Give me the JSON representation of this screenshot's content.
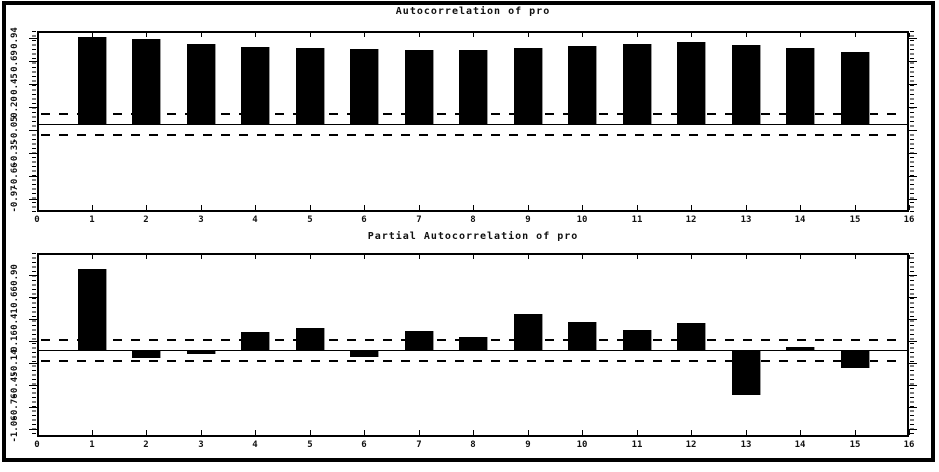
{
  "page": {
    "background": "#ffffff",
    "border_color": "#000000",
    "bar_color": "#000000"
  },
  "chart_data": [
    {
      "type": "bar",
      "title": "Autocorrelation of pro",
      "lags": [
        1,
        2,
        3,
        4,
        5,
        6,
        7,
        8,
        9,
        10,
        11,
        12,
        13,
        14,
        15
      ],
      "values": [
        0.93,
        0.9,
        0.85,
        0.82,
        0.81,
        0.8,
        0.79,
        0.79,
        0.81,
        0.83,
        0.85,
        0.87,
        0.84,
        0.81,
        0.77
      ],
      "xlabel": "",
      "ylabel": "",
      "xlim": [
        0,
        16
      ],
      "x_ticks": [
        "0",
        "1",
        "2",
        "3",
        "4",
        "5",
        "6",
        "7",
        "8",
        "9",
        "10",
        "11",
        "12",
        "13",
        "14",
        "15",
        "16"
      ],
      "y_ticks": [
        "0.94",
        "0.69",
        "0.45",
        "0.20",
        "-0.05",
        "-0.35",
        "-0.66",
        "-0.97"
      ],
      "zero_line": true,
      "confidence_band": 0.11,
      "grid": false,
      "legend": "none",
      "bar_color": "#000000"
    },
    {
      "type": "bar",
      "title": "Partial Autocorrelation of pro",
      "lags": [
        1,
        2,
        3,
        4,
        5,
        6,
        7,
        8,
        9,
        10,
        11,
        12,
        13,
        14,
        15
      ],
      "values": [
        0.9,
        -0.08,
        -0.03,
        0.2,
        0.24,
        -0.07,
        0.21,
        0.14,
        0.4,
        0.31,
        0.22,
        0.3,
        -0.49,
        0.03,
        -0.19
      ],
      "xlabel": "",
      "ylabel": "",
      "xlim": [
        0,
        16
      ],
      "x_ticks": [
        "0",
        "1",
        "2",
        "3",
        "4",
        "5",
        "6",
        "7",
        "8",
        "9",
        "10",
        "11",
        "12",
        "13",
        "14",
        "15",
        "16"
      ],
      "y_ticks": [
        "0.90",
        "0.66",
        "0.41",
        "0.16",
        "-0.14",
        "-0.45",
        "-0.76",
        "-1.06"
      ],
      "zero_line": true,
      "confidence_band": 0.11,
      "grid": false,
      "legend": "none",
      "bar_color": "#000000"
    }
  ]
}
